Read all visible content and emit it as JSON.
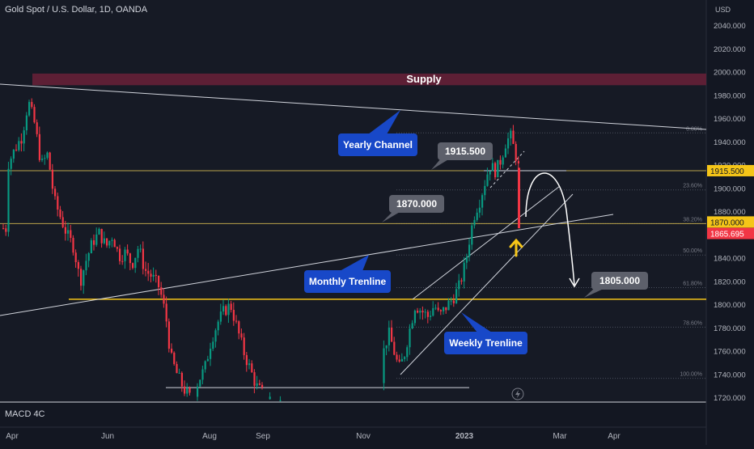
{
  "title": "Gold Spot / U.S. Dollar, 1D, OANDA",
  "indicator": "MACD 4C",
  "chart_data": {
    "type": "candlestick",
    "price_unit": "USD",
    "y_ticks": [
      1720,
      1740,
      1760,
      1780,
      1800,
      1820,
      1840,
      1860,
      1880,
      1900,
      1920,
      1940,
      1960,
      1980,
      2000,
      2020,
      2040
    ],
    "y_tick_labels": [
      "1720.000",
      "1740.000",
      "1760.000",
      "1780.000",
      "1800.000",
      "1820.000",
      "1840.000",
      "1860.000",
      "1880.000",
      "1900.000",
      "1920.000",
      "1940.000",
      "1960.000",
      "1980.000",
      "2000.000",
      "2020.000",
      "2040.000"
    ],
    "ylim": [
      1715,
      2052
    ],
    "x_ticks": [
      "Apr",
      "Jun",
      "Aug",
      "Sep",
      "Nov",
      "2023",
      "Mar",
      "Apr"
    ],
    "price_labels": [
      {
        "value": 1915.5,
        "text": "1915.500",
        "color": "#f5c518"
      },
      {
        "value": 1870.0,
        "text": "1870.000",
        "color": "#f5c518"
      },
      {
        "value": 1865.695,
        "text": "1865.695",
        "color": "#f23645"
      }
    ],
    "supply_zone": {
      "label": "Supply",
      "from": 1989,
      "to": 1999
    },
    "fib_levels": [
      {
        "label": "0.00%",
        "value": 1948
      },
      {
        "label": "23.60%",
        "value": 1899
      },
      {
        "label": "38.20%",
        "value": 1870
      },
      {
        "label": "50.00%",
        "value": 1843
      },
      {
        "label": "61.80%",
        "value": 1815
      },
      {
        "label": "78.60%",
        "value": 1781
      },
      {
        "label": "100.00%",
        "value": 1737
      }
    ],
    "annotations": [
      {
        "text": "Yearly Channel",
        "style": "blue"
      },
      {
        "text": "1915.500",
        "style": "gray"
      },
      {
        "text": "1870.000",
        "style": "gray"
      },
      {
        "text": "Monthly Trenline",
        "style": "blue"
      },
      {
        "text": "1805.000",
        "style": "gray"
      },
      {
        "text": "Weekly Trenline",
        "style": "blue"
      }
    ],
    "colors": {
      "up": "#089981",
      "down": "#f23645",
      "background": "#131722",
      "supply": "#5d1f35",
      "annotation_blue": "#1848c8",
      "annotation_gray": "#5d606b",
      "level": "#f5c518"
    }
  }
}
